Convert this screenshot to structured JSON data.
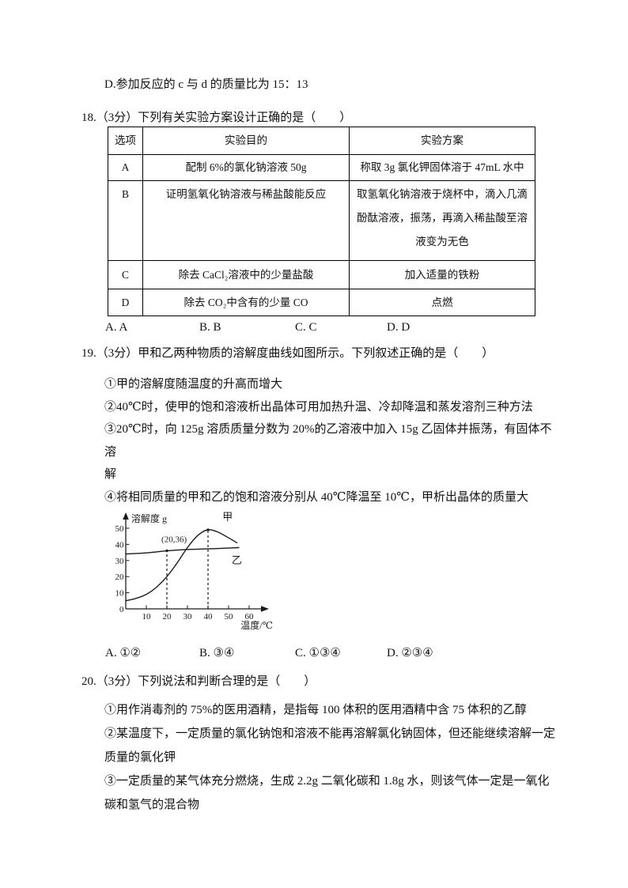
{
  "doc": {
    "prev_question_tail": "D.参加反应的 c 与 d 的质量比为 15：13",
    "q18": {
      "stem": "18.（3分）下列有关实验方案设计正确的是（　　）",
      "table": {
        "headers": [
          "选项",
          "实验目的",
          "实验方案"
        ],
        "rows": [
          {
            "option": "A",
            "purpose": "配制 6%的氯化钠溶液 50g",
            "plan": "称取 3g 氯化钾固体溶于 47mL 水中"
          },
          {
            "option": "B",
            "purpose": "证明氢氧化钠溶液与稀盐酸能反应",
            "plan": "取氢氧化钠溶液于烧杯中，滴入几滴\n酚酞溶液，振荡，再滴入稀盐酸至溶\n液变为无色"
          },
          {
            "option": "C",
            "purpose": "除去 CaCl₂溶液中的少量盐酸",
            "plan": "加入适量的铁粉"
          },
          {
            "option": "D",
            "purpose": "除去 CO₂中含有的少量 CO",
            "plan": "点燃"
          }
        ]
      },
      "answers": [
        "A. A",
        "B. B",
        "C. C",
        "D. D"
      ]
    },
    "q19": {
      "stem": "19.（3分）甲和乙两种物质的溶解度曲线如图所示。下列叙述正确的是（　　）",
      "statements": [
        "①甲的溶解度随温度的升高而增大",
        "②40℃时，使甲的饱和溶液析出晶体可用加热升温、冷却降温和蒸发溶剂三种方法",
        "③20℃时，向 125g 溶质质量分数为 20%的乙溶液中加入 15g 乙固体并振荡，有固体不溶\n解",
        "④将相同质量的甲和乙的饱和溶液分别从 40℃降温至 10℃，甲析出晶体的质量大"
      ],
      "answers": [
        "A. ①②",
        "B. ③④",
        "C. ①③④",
        "D. ②③④"
      ]
    },
    "q20": {
      "stem": "20.（3分）下列说法和判断合理的是（　　）",
      "statements": [
        "①用作消毒剂的 75%的医用酒精，是指每 100 体积的医用酒精中含 75 体积的乙醇",
        "②某温度下，一定质量的氯化钠饱和溶液不能再溶解氯化钠固体，但还能继续溶解一定\n质量的氯化钾",
        "③一定质量的某气体充分燃烧，生成 2.2g 二氧化碳和 1.8g 水，则该气体一定是一氧化\n碳和氢气的混合物"
      ]
    }
  },
  "chart_data": {
    "type": "line",
    "title": "",
    "xlabel": "温度/℃",
    "ylabel": "溶解度 g",
    "xlim": [
      0,
      65
    ],
    "ylim": [
      0,
      55
    ],
    "xticks": [
      10,
      20,
      30,
      40,
      50,
      60
    ],
    "yticks": [
      0,
      10,
      20,
      30,
      40,
      50
    ],
    "grid": false,
    "line_color": "#1a1a1a",
    "series": [
      {
        "name": "甲",
        "x": [
          0,
          5,
          10,
          15,
          20,
          25,
          30,
          35,
          40,
          45,
          50,
          54
        ],
        "y": [
          5,
          6.5,
          9,
          13.5,
          20,
          28.5,
          38,
          45.5,
          49,
          47.5,
          44,
          41
        ],
        "label_pos": [
          47,
          55
        ]
      },
      {
        "name": "乙",
        "x": [
          0,
          10,
          20,
          30,
          40,
          50,
          55
        ],
        "y": [
          34,
          34.7,
          36,
          36.8,
          37.2,
          37.7,
          38
        ],
        "label_pos": [
          51.5,
          28
        ]
      }
    ],
    "annotations": {
      "point_label": "(20,36)",
      "point_label_at": [
        23.5,
        41.5
      ],
      "dashed_guides": [
        {
          "x": 20,
          "y": 36
        },
        {
          "x": 40,
          "y": 49
        }
      ]
    }
  }
}
